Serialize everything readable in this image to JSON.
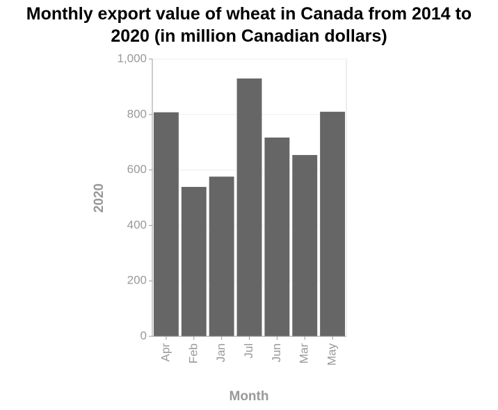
{
  "chart_data": {
    "type": "bar",
    "title": "Monthly export value of wheat in Canada from 2014 to 2020 (in million Canadian dollars)",
    "x_label": "Month",
    "y_label": "2020",
    "categories": [
      "Apr",
      "Feb",
      "Jan",
      "Jul",
      "Jun",
      "Mar",
      "May"
    ],
    "values": [
      808,
      539,
      576,
      930,
      717,
      654,
      810
    ],
    "color": "#666666",
    "ylim": [
      0,
      1000
    ],
    "yticks": [
      0,
      200,
      400,
      600,
      800,
      {
        "value": 1000,
        "label": "1,000"
      }
    ],
    "grid": true
  }
}
